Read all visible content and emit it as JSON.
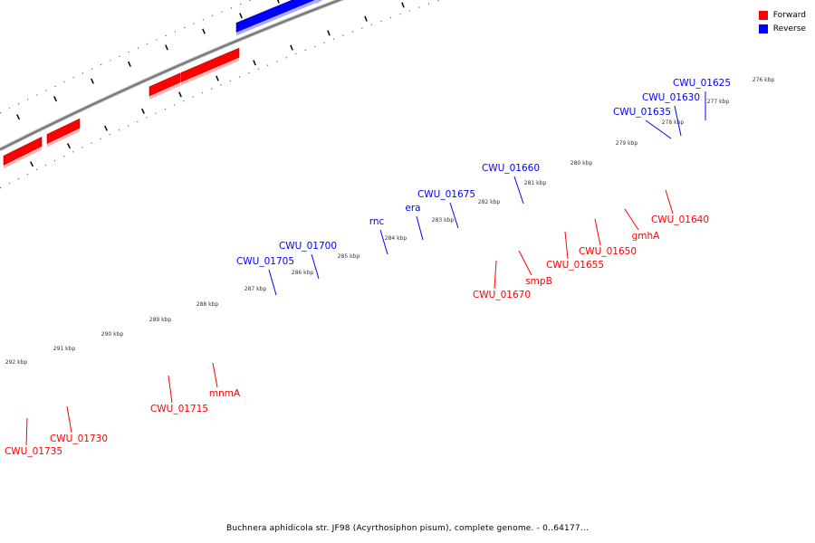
{
  "legend": [
    {
      "label": "Forward",
      "color": "#ff0000"
    },
    {
      "label": "Reverse",
      "color": "#0000ff"
    }
  ],
  "caption": "Buchnera aphidicola str. JF98 (Acyrthosiphon pisum), complete genome. - 0..64177...",
  "colors": {
    "forward": "#ff0000",
    "reverse": "#0000ff",
    "backbone": "#777777"
  },
  "ticks": [
    "276 kbp",
    "277 kbp",
    "278 kbp",
    "279 kbp",
    "280 kbp",
    "281 kbp",
    "282 kbp",
    "283 kbp",
    "284 kbp",
    "285 kbp",
    "286 kbp",
    "287 kbp",
    "288 kbp",
    "289 kbp",
    "290 kbp",
    "291 kbp",
    "292 kbp"
  ],
  "features": [
    {
      "name": "CWU_01625",
      "strand": "reverse"
    },
    {
      "name": "CWU_01630",
      "strand": "reverse"
    },
    {
      "name": "CWU_01635",
      "strand": "reverse"
    },
    {
      "name": "CWU_01660",
      "strand": "reverse"
    },
    {
      "name": "CWU_01675",
      "strand": "reverse"
    },
    {
      "name": "era",
      "strand": "reverse"
    },
    {
      "name": "rnc",
      "strand": "reverse"
    },
    {
      "name": "CWU_01700",
      "strand": "reverse"
    },
    {
      "name": "CWU_01705",
      "strand": "reverse"
    },
    {
      "name": "CWU_01640",
      "strand": "forward"
    },
    {
      "name": "gmhA",
      "strand": "forward"
    },
    {
      "name": "CWU_01650",
      "strand": "forward"
    },
    {
      "name": "CWU_01655",
      "strand": "forward"
    },
    {
      "name": "smpB",
      "strand": "forward"
    },
    {
      "name": "CWU_01670",
      "strand": "forward"
    },
    {
      "name": "mnmA",
      "strand": "forward"
    },
    {
      "name": "CWU_01715",
      "strand": "forward"
    },
    {
      "name": "CWU_01730",
      "strand": "forward"
    },
    {
      "name": "CWU_01735",
      "strand": "forward"
    }
  ]
}
